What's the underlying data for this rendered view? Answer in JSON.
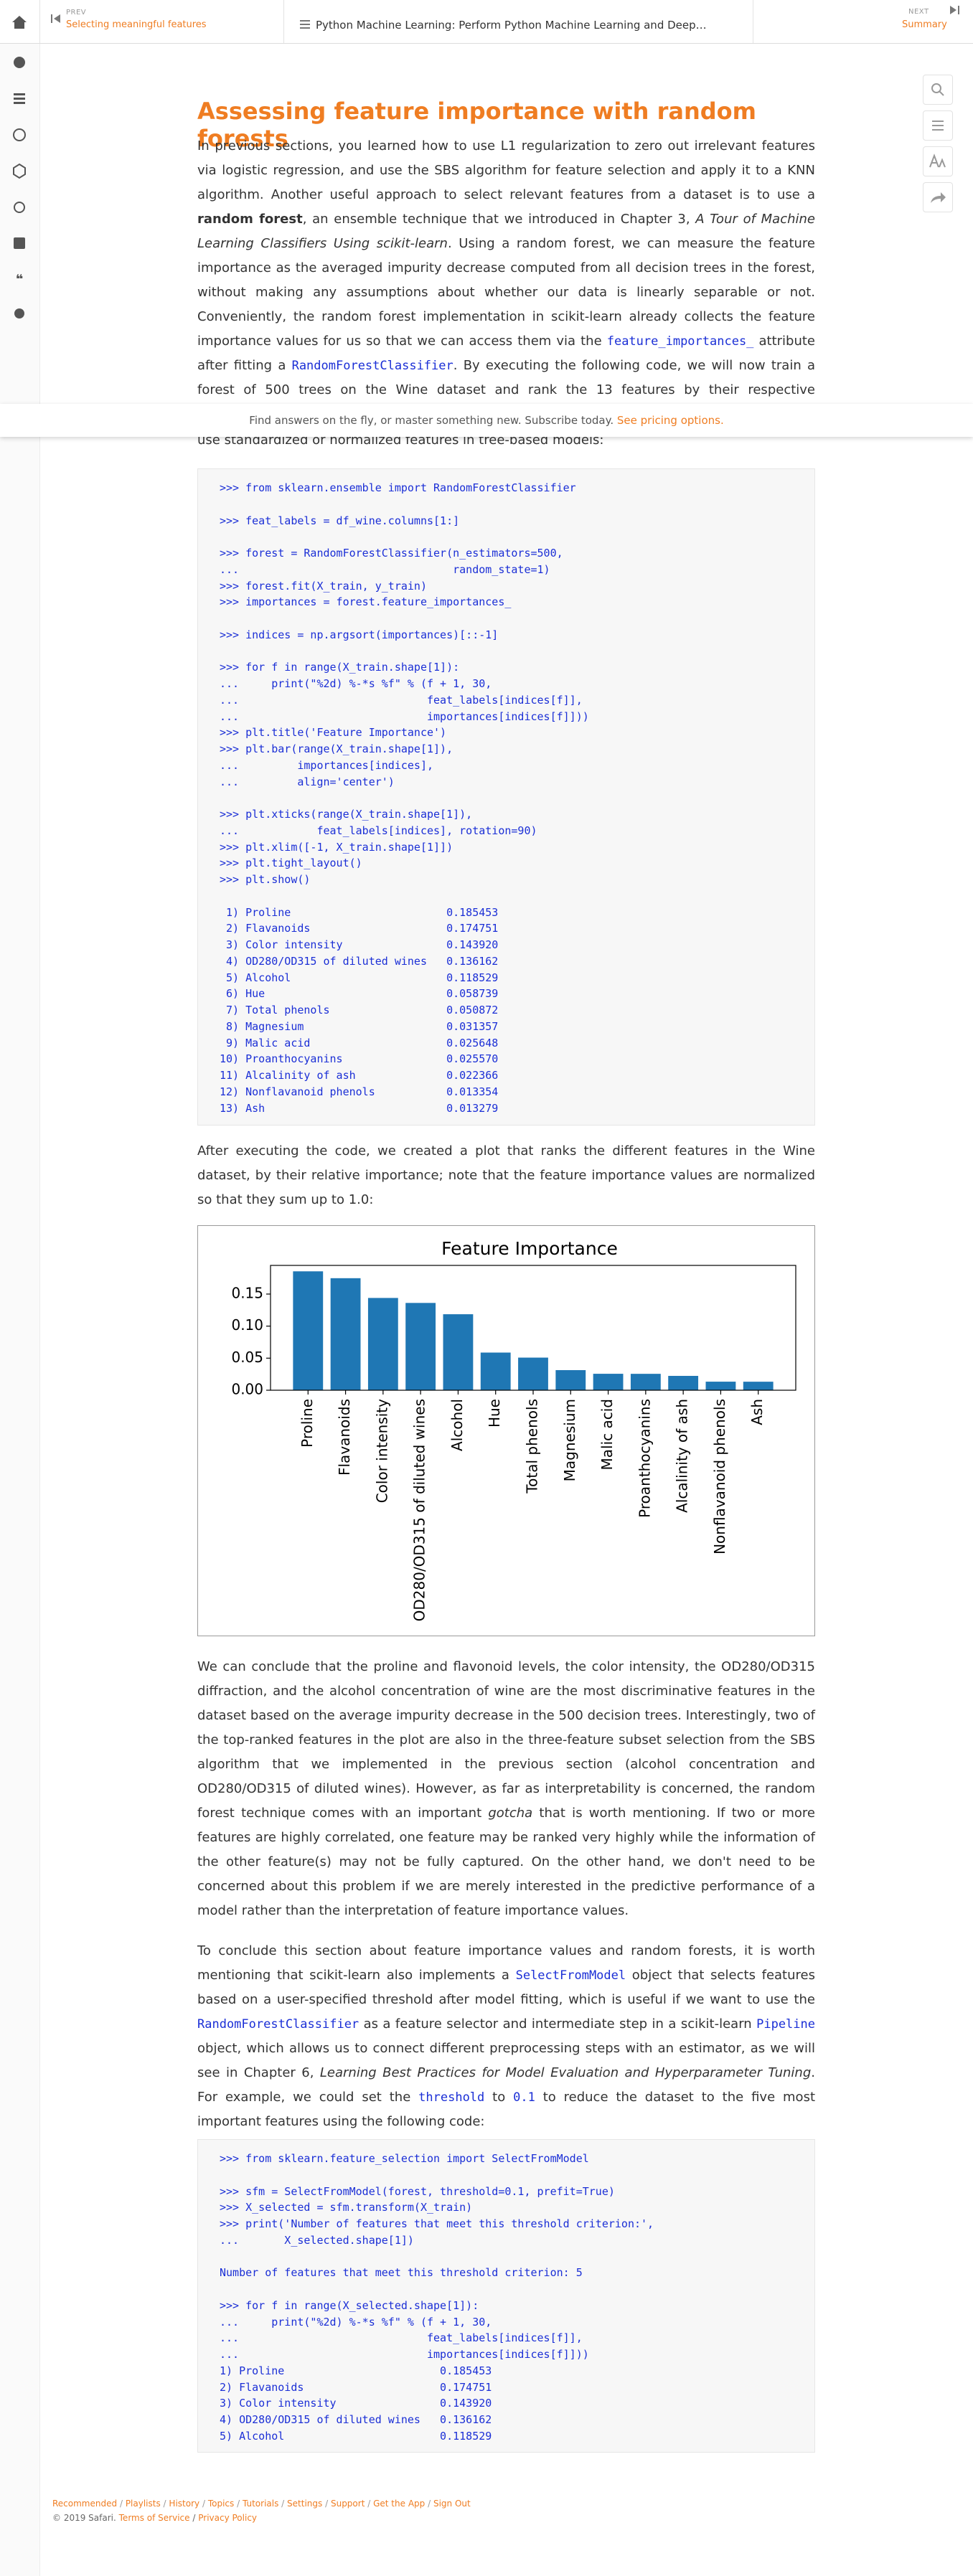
{
  "top_bar": {
    "prev_label": "PREV",
    "prev_title": "Selecting meaningful features",
    "book_title": "Python Machine Learning: Perform Python Machine Learning and Deep…",
    "next_label": "NEXT",
    "next_title": "Summary"
  },
  "banner": {
    "text": "Find answers on the fly, or master something new. Subscribe today.",
    "link": "See pricing options."
  },
  "article": {
    "title": "Assessing feature importance with random forests",
    "paragraphs": [
      {
        "runs": [
          {
            "text": "In previous sections, you learned how to use L1 regularization to zero out irrelevant features via logistic regression, and use the SBS algorithm for feature selection and apply it to a KNN algorithm. Another useful approach to select relevant features from a dataset is to use a "
          },
          {
            "text": "random forest",
            "style": "bold"
          },
          {
            "text": ", an ensemble technique that we introduced in Chapter 3, "
          },
          {
            "text": "A Tour of Machine Learning Classifiers Using scikit-learn",
            "style": "italic"
          },
          {
            "text": ". Using a random forest, we can measure the feature importance as the averaged impurity decrease computed from all decision trees in the forest, without making any assumptions about whether our data is linearly separable or not. Conveniently, the random forest implementation in scikit-learn already collects the feature importance values for us so that we can access them via the "
          },
          {
            "text": "feature_importances_",
            "style": "code"
          },
          {
            "text": " attribute after fitting a "
          },
          {
            "text": "RandomForestClassifier",
            "style": "code"
          },
          {
            "text": ". By executing the following code, we will now train a forest of 500 trees on the Wine dataset and rank the 13 features by their respective importance measures—remember from our discussion in"
          }
        ]
      },
      {
        "runs": [
          {
            "text": "use standardized or normalized features in tree-based models:"
          }
        ]
      },
      {
        "runs": [
          {
            "text": "After executing the code, we created a plot that ranks the different features in the Wine dataset, by their relative importance; note that the feature importance values are normalized so that they sum up to 1.0:"
          }
        ]
      },
      {
        "runs": [
          {
            "text": "We can conclude that the proline and flavonoid levels, the color intensity, the OD280/OD315 diffraction, and the alcohol concentration of wine are the most discriminative features in the dataset based on the average impurity decrease in the 500 decision trees. Interestingly, two of the top-ranked features in the plot are also in the three-feature subset selection from the SBS algorithm that we implemented in the previous section (alcohol concentration and OD280/OD315 of diluted wines). However, as far as interpretability is concerned, the random forest technique comes with an important "
          },
          {
            "text": "gotcha",
            "style": "italic"
          },
          {
            "text": " that is worth mentioning. If two or more features are highly correlated, one feature may be ranked very highly while the information of the other feature(s) may not be fully captured. On the other hand, we don't need to be concerned about this problem if we are merely interested in the predictive performance of a model rather than the interpretation of feature importance values."
          }
        ]
      },
      {
        "runs": [
          {
            "text": "To conclude this section about feature importance values and random forests, it is worth mentioning that scikit-learn also implements a "
          },
          {
            "text": "SelectFromModel",
            "style": "code"
          },
          {
            "text": " object that selects features based on a user-specified threshold after model fitting, which is useful if we want to use the "
          },
          {
            "text": "RandomForestClassifier",
            "style": "code"
          },
          {
            "text": " as a feature selector and intermediate step in a scikit-learn "
          },
          {
            "text": "Pipeline",
            "style": "code"
          },
          {
            "text": " object, which allows us to connect different preprocessing steps with an estimator, as we will see in Chapter 6, "
          },
          {
            "text": "Learning Best Practices for Model Evaluation and Hyperparameter Tuning",
            "style": "italic"
          },
          {
            "text": ". For example, we could set the "
          },
          {
            "text": "threshold",
            "style": "code"
          },
          {
            "text": " to "
          },
          {
            "text": "0.1",
            "style": "code"
          },
          {
            "text": " to reduce the dataset to the five most important features using the following code:"
          }
        ]
      }
    ],
    "code": [
      ">>> from sklearn.ensemble import RandomForestClassifier\n\n>>> feat_labels = df_wine.columns[1:]\n\n>>> forest = RandomForestClassifier(n_estimators=500,\n...                                 random_state=1)\n>>> forest.fit(X_train, y_train)\n>>> importances = forest.feature_importances_\n\n>>> indices = np.argsort(importances)[::-1]\n\n>>> for f in range(X_train.shape[1]):\n...     print(\"%2d) %-*s %f\" % (f + 1, 30,\n...                             feat_labels[indices[f]],\n...                             importances[indices[f]]))\n>>> plt.title('Feature Importance')\n>>> plt.bar(range(X_train.shape[1]),\n...         importances[indices],\n...         align='center')\n\n>>> plt.xticks(range(X_train.shape[1]),\n...            feat_labels[indices], rotation=90)\n>>> plt.xlim([-1, X_train.shape[1]])\n>>> plt.tight_layout()\n>>> plt.show()\n\n 1) Proline                        0.185453\n 2) Flavanoids                     0.174751\n 3) Color intensity                0.143920\n 4) OD280/OD315 of diluted wines   0.136162\n 5) Alcohol                        0.118529\n 6) Hue                            0.058739\n 7) Total phenols                  0.050872\n 8) Magnesium                      0.031357\n 9) Malic acid                     0.025648\n10) Proanthocyanins                0.025570\n11) Alcalinity of ash              0.022366\n12) Nonflavanoid phenols           0.013354\n13) Ash                            0.013279",
      ">>> from sklearn.feature_selection import SelectFromModel\n\n>>> sfm = SelectFromModel(forest, threshold=0.1, prefit=True)\n>>> X_selected = sfm.transform(X_train)\n>>> print('Number of features that meet this threshold criterion:',\n...       X_selected.shape[1])\n\nNumber of features that meet this threshold criterion: 5\n\n>>> for f in range(X_selected.shape[1]):\n...     print(\"%2d) %-*s %f\" % (f + 1, 30,\n...                             feat_labels[indices[f]],\n...                             importances[indices[f]]))\n1) Proline                        0.185453\n2) Flavanoids                     0.174751\n3) Color intensity                0.143920\n4) OD280/OD315 of diluted wines   0.136162\n5) Alcohol                        0.118529"
    ]
  },
  "chart_data": {
    "type": "bar",
    "title": "Feature Importance",
    "categories": [
      "Proline",
      "Flavanoids",
      "Color intensity",
      "OD280/OD315 of diluted wines",
      "Alcohol",
      "Hue",
      "Total phenols",
      "Magnesium",
      "Malic acid",
      "Proanthocyanins",
      "Alcalinity of ash",
      "Nonflavanoid phenols",
      "Ash"
    ],
    "values": [
      0.185453,
      0.174751,
      0.14392,
      0.136162,
      0.118529,
      0.058739,
      0.050872,
      0.031357,
      0.025648,
      0.02557,
      0.022366,
      0.013354,
      0.013279
    ],
    "color": "#1f77b4",
    "xlim": [
      -1,
      13
    ],
    "ylim": [
      0,
      0.1947
    ],
    "yticks": [
      {
        "value": 0,
        "label": "0.00"
      },
      {
        "value": 0.05,
        "label": "0.05"
      },
      {
        "value": 0.1,
        "label": "0.10"
      },
      {
        "value": 0.15,
        "label": "0.15"
      }
    ],
    "grid": false
  },
  "footer": {
    "links": [
      "Recommended",
      "Playlists",
      "History",
      "Topics",
      "Tutorials",
      "Settings",
      "Support",
      "Get the App",
      "Sign Out"
    ],
    "separator": "/",
    "copyright": "© 2019 Safari.",
    "legal": [
      "Terms of Service",
      "Privacy Policy"
    ]
  }
}
